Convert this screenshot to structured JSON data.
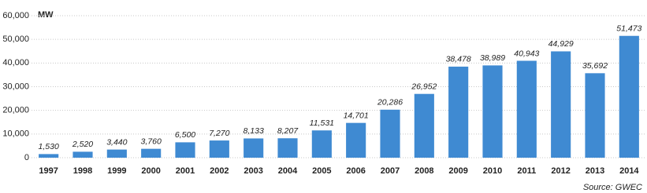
{
  "chart_data": {
    "type": "bar",
    "unit_label": "MW",
    "source": "Source: GWEC",
    "categories": [
      "1997",
      "1998",
      "1999",
      "2000",
      "2001",
      "2002",
      "2003",
      "2004",
      "2005",
      "2006",
      "2007",
      "2008",
      "2009",
      "2010",
      "2011",
      "2012",
      "2013",
      "2014"
    ],
    "values": [
      1530,
      2520,
      3440,
      3760,
      6500,
      7270,
      8133,
      8207,
      11531,
      14701,
      20286,
      26952,
      38478,
      38989,
      40943,
      44929,
      35692,
      51473
    ],
    "value_labels": [
      "1,530",
      "2,520",
      "3,440",
      "3,760",
      "6,500",
      "7,270",
      "8,133",
      "8,207",
      "11,531",
      "14,701",
      "20,286",
      "26,952",
      "38,478",
      "38,989",
      "40,943",
      "44,929",
      "35,692",
      "51,473"
    ],
    "color": "#3f8ad2",
    "ylim": [
      0,
      60000
    ],
    "yticks": [
      0,
      {
        "value": 10000,
        "label": "10,000"
      },
      {
        "value": 20000,
        "label": "20,000"
      },
      {
        "value": 30000,
        "label": "30,000"
      },
      {
        "value": 40000,
        "label": "40,000"
      },
      {
        "value": 50000,
        "label": "50,000"
      },
      {
        "value": 60000,
        "label": "60,000"
      }
    ],
    "grid": true
  }
}
